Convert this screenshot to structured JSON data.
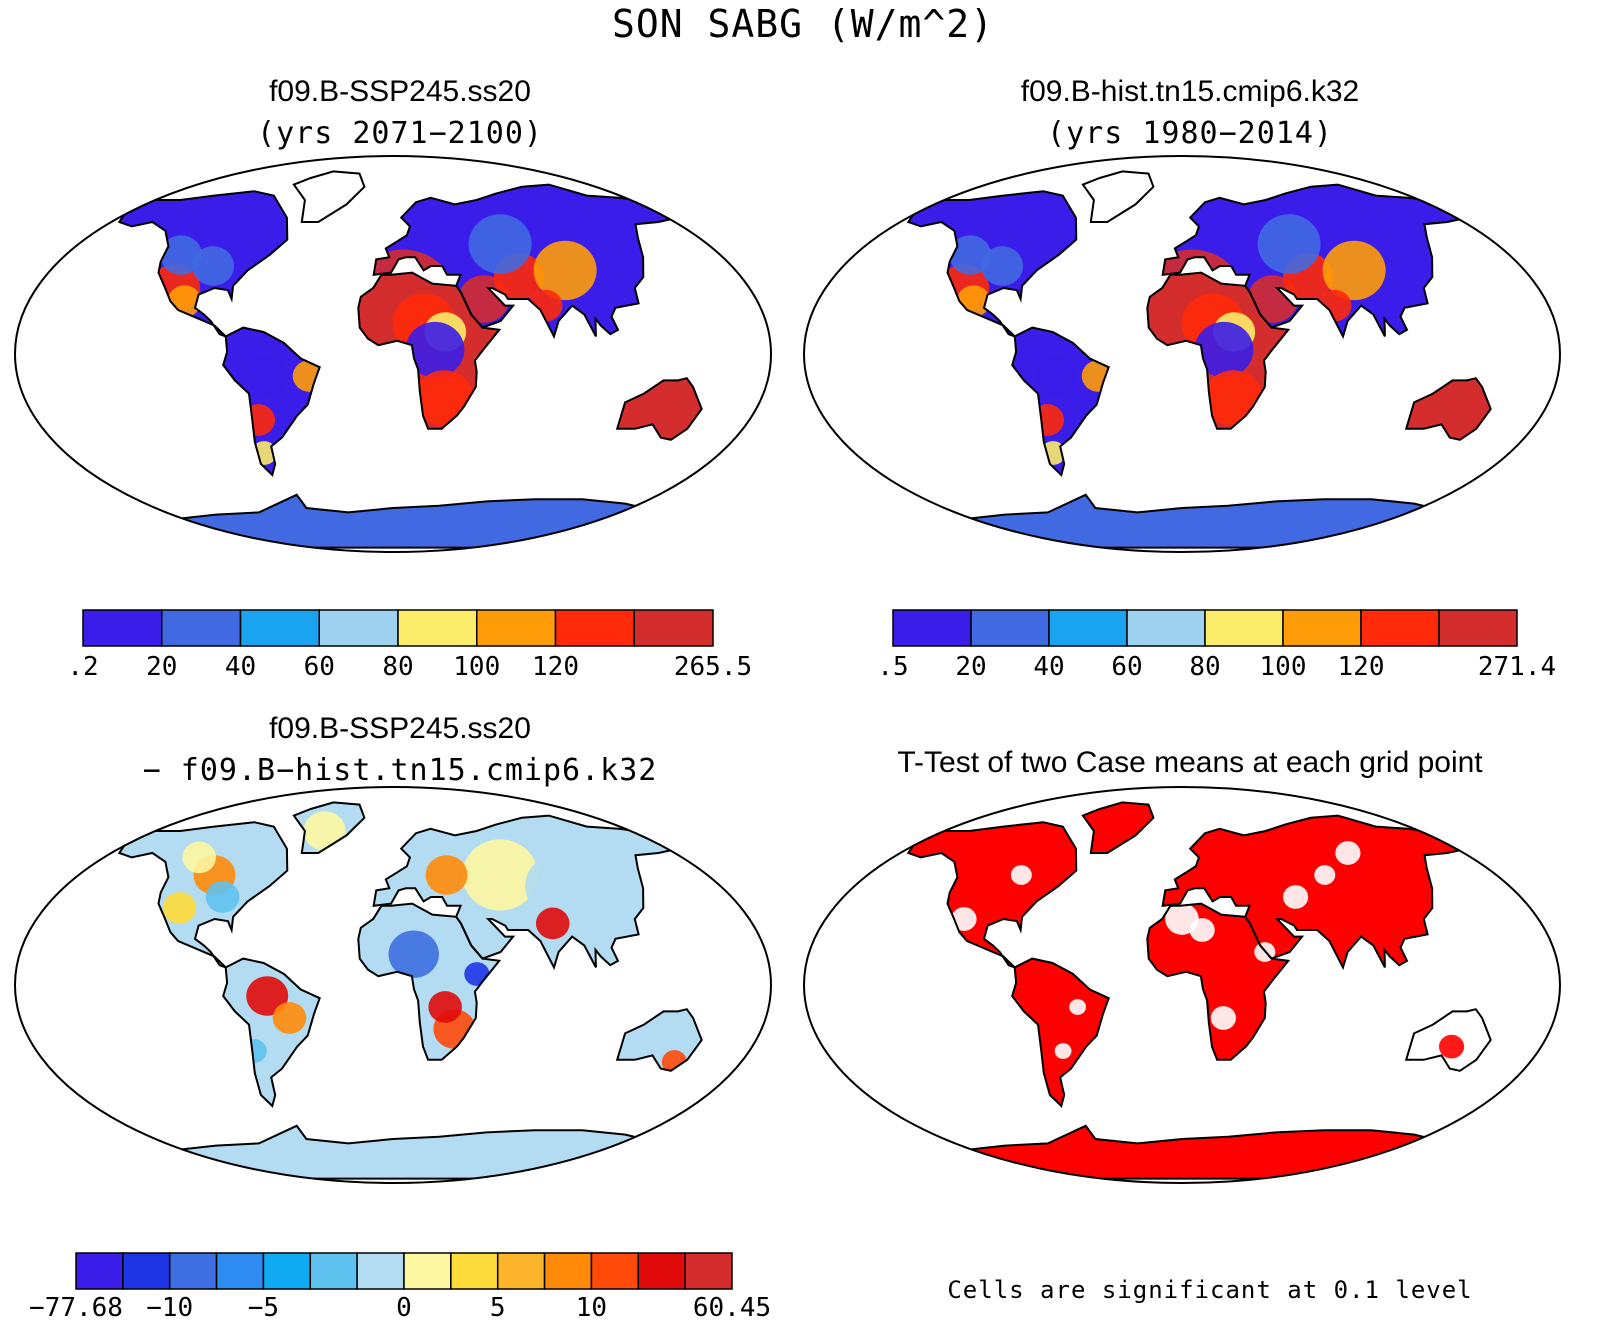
{
  "figure": {
    "title": "SON SABG (W/m^2)"
  },
  "panels": [
    {
      "title": "f09.B-SSP245.ss20",
      "subtitle": "(yrs 2071−2100)",
      "field": "case1"
    },
    {
      "title": "f09.B-hist.tn15.cmip6.k32",
      "subtitle": "(yrs 1980−2014)",
      "field": "case2"
    },
    {
      "title": "f09.B-SSP245.ss20",
      "subtitle": "− f09.B−hist.tn15.cmip6.k32",
      "field": "difference"
    },
    {
      "title": "T-Test of two Case means at each grid point",
      "subtitle": "",
      "field": "significance"
    }
  ],
  "colorbars": [
    {
      "colors": [
        "#3a1de8",
        "#4169e1",
        "#1aa3f0",
        "#9ed2f0",
        "#fbec6a",
        "#ff9c08",
        "#ff2a0a",
        "#d42d2d"
      ],
      "labels": [
        ".2",
        "20",
        "40",
        "60",
        "80",
        "100",
        "120",
        "265.5"
      ],
      "label_edges": [
        0,
        1,
        2,
        3,
        4,
        5,
        6,
        8
      ]
    },
    {
      "colors": [
        "#3a1de8",
        "#4169e1",
        "#1aa3f0",
        "#9ed2f0",
        "#fbec6a",
        "#ff9c08",
        "#ff2a0a",
        "#d42d2d"
      ],
      "labels": [
        ".5",
        "20",
        "40",
        "60",
        "80",
        "100",
        "120",
        "271.4"
      ],
      "label_edges": [
        0,
        1,
        2,
        3,
        4,
        5,
        6,
        8
      ]
    },
    {
      "colors": [
        "#3a1de8",
        "#1e35e6",
        "#3d6fe0",
        "#2e8cf2",
        "#10aaf2",
        "#5fc2ee",
        "#b3dcf2",
        "#fdf6a0",
        "#fddc3a",
        "#fcb52a",
        "#ff8a0a",
        "#ff4a0a",
        "#e00a0a",
        "#d42d2d"
      ],
      "labels": [
        "−77.68",
        "−10",
        "−5",
        "0",
        "5",
        "10",
        "60.45"
      ],
      "label_edges": [
        0,
        2,
        4,
        7,
        9,
        11,
        14
      ]
    }
  ],
  "significance_note": "Cells are significant at 0.1 level",
  "palettes": {
    "case": [
      "#3a1de8",
      "#4169e1",
      "#1aa3f0",
      "#9ed2f0",
      "#fbec6a",
      "#ff9c08",
      "#ff2a0a",
      "#d42d2d"
    ],
    "significant": "#ff0000",
    "land_outline": "#000000"
  }
}
